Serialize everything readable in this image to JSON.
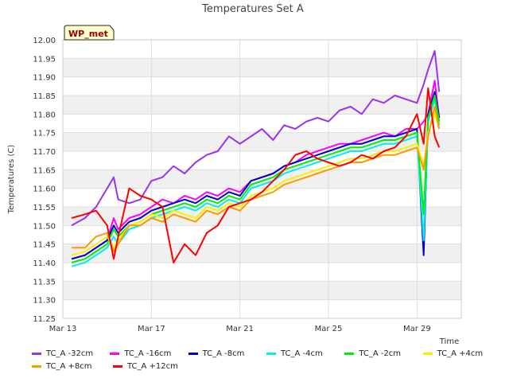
{
  "chart_data": {
    "type": "line",
    "title": "Temperatures Set A",
    "xlabel": "Time",
    "ylabel": "Temperatures (C)",
    "badge": "WP_met",
    "xlim": [
      0,
      18
    ],
    "ylim": [
      11.25,
      12.0
    ],
    "xticks": [
      {
        "value": 0,
        "label": "Mar 13"
      },
      {
        "value": 4,
        "label": "Mar 17"
      },
      {
        "value": 8,
        "label": "Mar 21"
      },
      {
        "value": 12,
        "label": "Mar 25"
      },
      {
        "value": 16,
        "label": "Mar 29"
      }
    ],
    "yticks": [
      "11.25",
      "11.30",
      "11.35",
      "11.40",
      "11.45",
      "11.50",
      "11.55",
      "11.60",
      "11.65",
      "11.70",
      "11.75",
      "11.80",
      "11.85",
      "11.90",
      "11.95",
      "12.00"
    ],
    "grid": true,
    "legend_position": "bottom",
    "series": [
      {
        "name": "TC_A -32cm",
        "color": "#9933ee",
        "x": [
          0.4,
          1.0,
          1.5,
          2.0,
          2.3,
          2.5,
          3.0,
          3.5,
          4.0,
          4.5,
          5.0,
          5.5,
          6.0,
          6.5,
          7.0,
          7.5,
          8.0,
          8.5,
          9.0,
          9.5,
          10.0,
          10.5,
          11.0,
          11.5,
          12.0,
          12.5,
          13.0,
          13.5,
          14.0,
          14.5,
          15.0,
          15.5,
          16.0,
          16.3,
          16.5,
          16.8,
          17.0
        ],
        "y": [
          11.5,
          11.52,
          11.55,
          11.6,
          11.63,
          11.57,
          11.56,
          11.57,
          11.62,
          11.63,
          11.66,
          11.64,
          11.67,
          11.69,
          11.7,
          11.74,
          11.72,
          11.74,
          11.76,
          11.73,
          11.77,
          11.76,
          11.78,
          11.79,
          11.78,
          11.81,
          11.82,
          11.8,
          11.84,
          11.83,
          11.85,
          11.84,
          11.83,
          11.88,
          11.92,
          11.97,
          11.86
        ]
      },
      {
        "name": "TC_A -16cm",
        "color": "#ff00ff",
        "x": [
          0.4,
          1.0,
          1.5,
          2.0,
          2.3,
          2.5,
          3.0,
          3.5,
          4.0,
          4.5,
          5.0,
          5.5,
          6.0,
          6.5,
          7.0,
          7.5,
          8.0,
          8.5,
          9.0,
          9.5,
          10.0,
          10.5,
          11.0,
          11.5,
          12.0,
          12.5,
          13.0,
          13.5,
          14.0,
          14.5,
          15.0,
          15.5,
          16.0,
          16.3,
          16.5,
          16.8,
          17.0
        ],
        "y": [
          11.41,
          11.42,
          11.44,
          11.46,
          11.52,
          11.49,
          11.52,
          11.53,
          11.55,
          11.57,
          11.56,
          11.58,
          11.57,
          11.59,
          11.58,
          11.6,
          11.59,
          11.62,
          11.63,
          11.64,
          11.66,
          11.67,
          11.69,
          11.7,
          11.71,
          11.72,
          11.72,
          11.73,
          11.74,
          11.75,
          11.74,
          11.76,
          11.76,
          11.78,
          11.8,
          11.89,
          11.79
        ]
      },
      {
        "name": "TC_A -8cm",
        "color": "#0000cc",
        "x": [
          0.4,
          1.0,
          1.5,
          2.0,
          2.3,
          2.5,
          3.0,
          3.5,
          4.0,
          4.5,
          5.0,
          5.5,
          6.0,
          6.5,
          7.0,
          7.5,
          8.0,
          8.5,
          9.0,
          9.5,
          10.0,
          10.5,
          11.0,
          11.5,
          12.0,
          12.5,
          13.0,
          13.5,
          14.0,
          14.5,
          15.0,
          15.5,
          16.0,
          16.3,
          16.5,
          16.8,
          17.0
        ],
        "y": [
          11.41,
          11.42,
          11.44,
          11.46,
          11.5,
          11.48,
          11.51,
          11.52,
          11.54,
          11.55,
          11.56,
          11.57,
          11.56,
          11.58,
          11.57,
          11.59,
          11.58,
          11.62,
          11.63,
          11.64,
          11.66,
          11.67,
          11.68,
          11.69,
          11.7,
          11.71,
          11.72,
          11.72,
          11.73,
          11.74,
          11.74,
          11.75,
          11.76,
          11.42,
          11.8,
          11.86,
          11.79
        ]
      },
      {
        "name": "TC_A -4cm",
        "color": "#00eeee",
        "x": [
          0.4,
          1.0,
          1.5,
          2.0,
          2.3,
          2.5,
          3.0,
          3.5,
          4.0,
          4.5,
          5.0,
          5.5,
          6.0,
          6.5,
          7.0,
          7.5,
          8.0,
          8.5,
          9.0,
          9.5,
          10.0,
          10.5,
          11.0,
          11.5,
          12.0,
          12.5,
          13.0,
          13.5,
          14.0,
          14.5,
          15.0,
          15.5,
          16.0,
          16.3,
          16.5,
          16.8,
          17.0
        ],
        "y": [
          11.39,
          11.4,
          11.42,
          11.44,
          11.47,
          11.45,
          11.49,
          11.5,
          11.52,
          11.53,
          11.54,
          11.55,
          11.54,
          11.56,
          11.55,
          11.57,
          11.56,
          11.6,
          11.61,
          11.62,
          11.64,
          11.65,
          11.66,
          11.67,
          11.68,
          11.69,
          11.7,
          11.7,
          11.71,
          11.72,
          11.72,
          11.73,
          11.74,
          11.46,
          11.78,
          11.84,
          11.77
        ]
      },
      {
        "name": "TC_A -2cm",
        "color": "#00ee00",
        "x": [
          0.4,
          1.0,
          1.5,
          2.0,
          2.3,
          2.5,
          3.0,
          3.5,
          4.0,
          4.5,
          5.0,
          5.5,
          6.0,
          6.5,
          7.0,
          7.5,
          8.0,
          8.5,
          9.0,
          9.5,
          10.0,
          10.5,
          11.0,
          11.5,
          12.0,
          12.5,
          13.0,
          13.5,
          14.0,
          14.5,
          15.0,
          15.5,
          16.0,
          16.3,
          16.5,
          16.8,
          17.0
        ],
        "y": [
          11.4,
          11.41,
          11.43,
          11.45,
          11.49,
          11.47,
          11.5,
          11.51,
          11.53,
          11.54,
          11.55,
          11.56,
          11.55,
          11.57,
          11.56,
          11.58,
          11.57,
          11.61,
          11.62,
          11.63,
          11.65,
          11.66,
          11.67,
          11.68,
          11.69,
          11.7,
          11.71,
          11.71,
          11.72,
          11.73,
          11.73,
          11.74,
          11.75,
          11.53,
          11.79,
          11.85,
          11.78
        ]
      },
      {
        "name": "TC_A +4cm",
        "color": "#ffee00",
        "x": [
          0.4,
          1.0,
          1.5,
          2.0,
          2.3,
          2.5,
          3.0,
          3.5,
          4.0,
          4.5,
          5.0,
          5.5,
          6.0,
          6.5,
          7.0,
          7.5,
          8.0,
          8.5,
          9.0,
          9.5,
          10.0,
          10.5,
          11.0,
          11.5,
          12.0,
          12.5,
          13.0,
          13.5,
          14.0,
          14.5,
          15.0,
          15.5,
          16.0,
          16.3,
          16.5,
          16.8,
          17.0
        ],
        "y": [
          11.42,
          11.43,
          11.45,
          11.47,
          11.44,
          11.46,
          11.5,
          11.51,
          11.53,
          11.52,
          11.54,
          11.53,
          11.52,
          11.55,
          11.54,
          11.56,
          11.55,
          11.58,
          11.59,
          11.6,
          11.62,
          11.63,
          11.64,
          11.65,
          11.66,
          11.67,
          11.68,
          11.68,
          11.69,
          11.7,
          11.7,
          11.71,
          11.72,
          11.66,
          11.75,
          11.8,
          11.76
        ]
      },
      {
        "name": "TC_A +8cm",
        "color": "#ff9900",
        "x": [
          0.4,
          1.0,
          1.5,
          2.0,
          2.3,
          2.5,
          3.0,
          3.5,
          4.0,
          4.5,
          5.0,
          5.5,
          6.0,
          6.5,
          7.0,
          7.5,
          8.0,
          8.5,
          9.0,
          9.5,
          10.0,
          10.5,
          11.0,
          11.5,
          12.0,
          12.5,
          13.0,
          13.5,
          14.0,
          14.5,
          15.0,
          15.5,
          16.0,
          16.3,
          16.5,
          16.8,
          17.0
        ],
        "y": [
          11.44,
          11.44,
          11.47,
          11.48,
          11.43,
          11.45,
          11.5,
          11.5,
          11.52,
          11.51,
          11.53,
          11.52,
          11.51,
          11.54,
          11.53,
          11.55,
          11.54,
          11.57,
          11.58,
          11.59,
          11.61,
          11.62,
          11.63,
          11.64,
          11.65,
          11.66,
          11.67,
          11.67,
          11.68,
          11.69,
          11.69,
          11.7,
          11.71,
          11.65,
          11.74,
          11.82,
          11.76
        ]
      },
      {
        "name": "TC_A +12cm",
        "color": "#ff0000",
        "x": [
          0.4,
          1.0,
          1.5,
          2.0,
          2.3,
          2.5,
          3.0,
          3.5,
          4.0,
          4.5,
          5.0,
          5.5,
          6.0,
          6.5,
          7.0,
          7.5,
          8.0,
          8.5,
          9.0,
          9.5,
          10.0,
          10.5,
          11.0,
          11.5,
          12.0,
          12.5,
          13.0,
          13.5,
          14.0,
          14.5,
          15.0,
          15.5,
          16.0,
          16.3,
          16.5,
          16.8,
          17.0
        ],
        "y": [
          11.52,
          11.53,
          11.54,
          11.5,
          11.41,
          11.47,
          11.6,
          11.58,
          11.57,
          11.55,
          11.4,
          11.45,
          11.42,
          11.48,
          11.5,
          11.55,
          11.56,
          11.57,
          11.59,
          11.62,
          11.65,
          11.69,
          11.7,
          11.68,
          11.67,
          11.66,
          11.67,
          11.69,
          11.68,
          11.7,
          11.71,
          11.74,
          11.8,
          11.72,
          11.87,
          11.74,
          11.71
        ]
      }
    ]
  }
}
